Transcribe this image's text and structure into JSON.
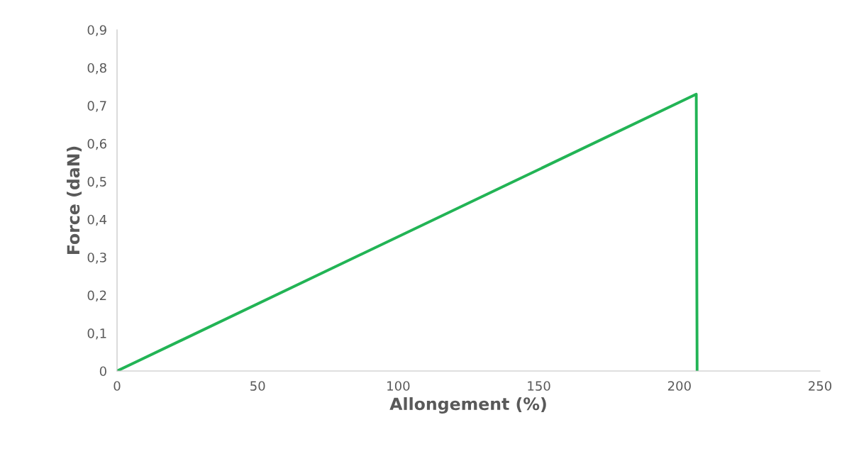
{
  "chart_data": {
    "type": "line",
    "xlabel": "Allongement (%)",
    "ylabel": "Force (daN)",
    "x": [
      0,
      206,
      206.3
    ],
    "series": [
      {
        "color": "#22b455",
        "values": [
          0,
          0.73,
          0
        ]
      }
    ],
    "xlim": [
      0,
      250
    ],
    "xticks": [
      0,
      50,
      100,
      150,
      200,
      250
    ],
    "ylim": [
      0,
      0.9
    ],
    "yticks": [
      {
        "value": 0,
        "label": "0"
      },
      {
        "value": 0.1,
        "label": "0,1"
      },
      {
        "value": 0.2,
        "label": "0,2"
      },
      {
        "value": 0.3,
        "label": "0,3"
      },
      {
        "value": 0.4,
        "label": "0,4"
      },
      {
        "value": 0.5,
        "label": "0,5"
      },
      {
        "value": 0.6,
        "label": "0,6"
      },
      {
        "value": 0.7,
        "label": "0,7"
      },
      {
        "value": 0.8,
        "label": "0,8"
      },
      {
        "value": 0.9,
        "label": "0,9"
      }
    ],
    "grid": false,
    "marker": "none",
    "line_style": "solid"
  }
}
